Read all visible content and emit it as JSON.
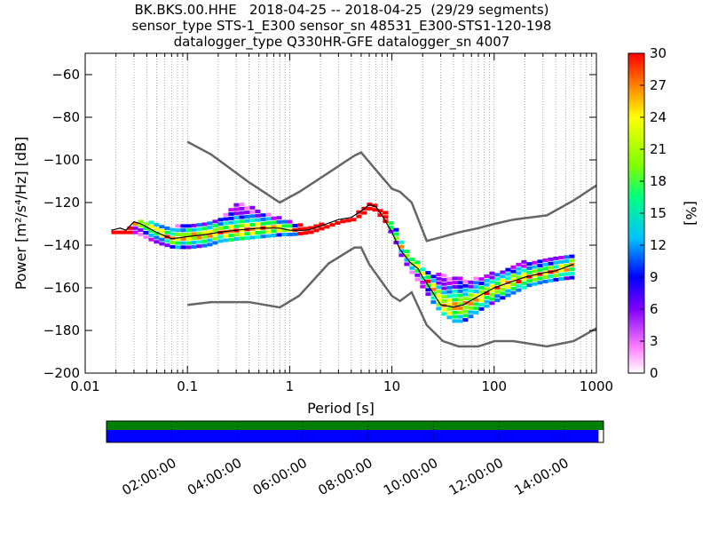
{
  "header": {
    "line1": "BK.BKS.00.HHE   2018-04-25 -- 2018-04-25  (29/29 segments)",
    "line2": "sensor_type STS-1_E300 sensor_sn 48531_E300-STS1-120-198",
    "line3": "datalogger_type Q330HR-GFE datalogger_sn 4007"
  },
  "chart_data": {
    "type": "heatmap",
    "title": "BK.BKS.00.HHE   2018-04-25 -- 2018-04-25  (29/29 segments)",
    "xlabel": "Period [s]",
    "ylabel": "Power [m²/s⁴/Hz] [dB]",
    "xscale": "log",
    "xlim": [
      0.01,
      1000
    ],
    "ylim": [
      -200,
      -50
    ],
    "xticks": [
      0.01,
      0.1,
      1,
      10,
      100,
      1000
    ],
    "xtick_labels": [
      "0.01",
      "0.1",
      "1",
      "10",
      "100",
      "1000"
    ],
    "yticks": [
      -200,
      -180,
      -160,
      -140,
      -120,
      -100,
      -80,
      -60
    ],
    "ytick_labels": [
      "−200",
      "−180",
      "−160",
      "−140",
      "−120",
      "−100",
      "−80",
      "−60"
    ],
    "grid": "dotted vertical grid",
    "colorbar": {
      "label": "[%]",
      "range": [
        0,
        30
      ],
      "ticks": [
        "0",
        "3",
        "6",
        "9",
        "12",
        "15",
        "18",
        "21",
        "24",
        "27",
        "30"
      ]
    },
    "nhnm": {
      "name": "NHNM",
      "x": [
        0.1,
        0.17,
        0.4,
        0.8,
        1.24,
        2.4,
        4.3,
        5.0,
        6.0,
        10,
        12,
        15.6,
        21.9,
        31.6,
        45,
        70,
        101,
        154,
        328,
        600,
        1000
      ],
      "y": [
        -91.5,
        -97.4,
        -110.5,
        -120,
        -115,
        -106,
        -98,
        -96.5,
        -101,
        -113.5,
        -115,
        -120,
        -138,
        -136,
        -134,
        -132,
        -130,
        -128,
        -126,
        -119,
        -112
      ]
    },
    "nlnm": {
      "name": "NLNM",
      "x": [
        0.1,
        0.17,
        0.4,
        0.8,
        1.24,
        2.4,
        4.3,
        5.0,
        6.0,
        10,
        12,
        15.6,
        21.9,
        31.6,
        45,
        70,
        101,
        154,
        328,
        600,
        1000
      ],
      "y": [
        -168,
        -166.7,
        -166.7,
        -169.2,
        -163.7,
        -148.6,
        -141.1,
        -141.1,
        -149,
        -163.8,
        -166.2,
        -162.1,
        -177.5,
        -185,
        -187.5,
        -187.5,
        -185,
        -185,
        -187.5,
        -185,
        -179
      ]
    },
    "mode_line": {
      "x": [
        0.018,
        0.022,
        0.025,
        0.03,
        0.035,
        0.05,
        0.07,
        0.1,
        0.15,
        0.2,
        0.3,
        0.5,
        0.8,
        1.0,
        1.5,
        2,
        3,
        4,
        5,
        6,
        7,
        8,
        10,
        12,
        15,
        18,
        20,
        25,
        30,
        40,
        50,
        70,
        100,
        150,
        200,
        300,
        400,
        600
      ],
      "y": [
        -133,
        -132,
        -133,
        -129,
        -130,
        -134,
        -137,
        -136,
        -135,
        -134,
        -133,
        -132,
        -132,
        -133,
        -133,
        -131,
        -128,
        -127,
        -124,
        -121,
        -122,
        -126,
        -134,
        -142,
        -148,
        -151,
        -155,
        -162,
        -168,
        -169,
        -168,
        -164,
        -160,
        -157,
        -155,
        -153,
        -152,
        -149
      ]
    },
    "spread": {
      "x": [
        0.018,
        0.025,
        0.03,
        0.04,
        0.05,
        0.07,
        0.1,
        0.15,
        0.2,
        0.3,
        0.5,
        0.8,
        1.0,
        1.5,
        2,
        3,
        4,
        5,
        6,
        8,
        10,
        12,
        15,
        20,
        25,
        30,
        40,
        50,
        70,
        100,
        150,
        200,
        300,
        400,
        600
      ],
      "upper": [
        -133,
        -132,
        -128,
        -129,
        -130,
        -131,
        -130,
        -128,
        -126,
        -120,
        -124,
        -127,
        -129,
        -131,
        -130,
        -128,
        -126,
        -123,
        -119,
        -124,
        -131,
        -139,
        -145,
        -152,
        -153,
        -154,
        -155,
        -156,
        -155,
        -152,
        -149,
        -147,
        -146,
        -145,
        -143
      ],
      "lower": [
        -134,
        -134,
        -134,
        -137,
        -139,
        -141,
        -141,
        -140,
        -138,
        -137,
        -136,
        -135,
        -135,
        -134,
        -132,
        -129,
        -128,
        -125,
        -122,
        -128,
        -137,
        -146,
        -153,
        -161,
        -168,
        -172,
        -176,
        -175,
        -170,
        -166,
        -162,
        -159,
        -157,
        -156,
        -155
      ]
    }
  },
  "timeline": {
    "tick_labels": [
      "02:00:00",
      "04:00:00",
      "06:00:00",
      "08:00:00",
      "10:00:00",
      "12:00:00",
      "14:00:00"
    ],
    "data_coverage": 0.99,
    "colors": {
      "data_bar": "#008000",
      "gap_bar": "#0000ff"
    }
  }
}
